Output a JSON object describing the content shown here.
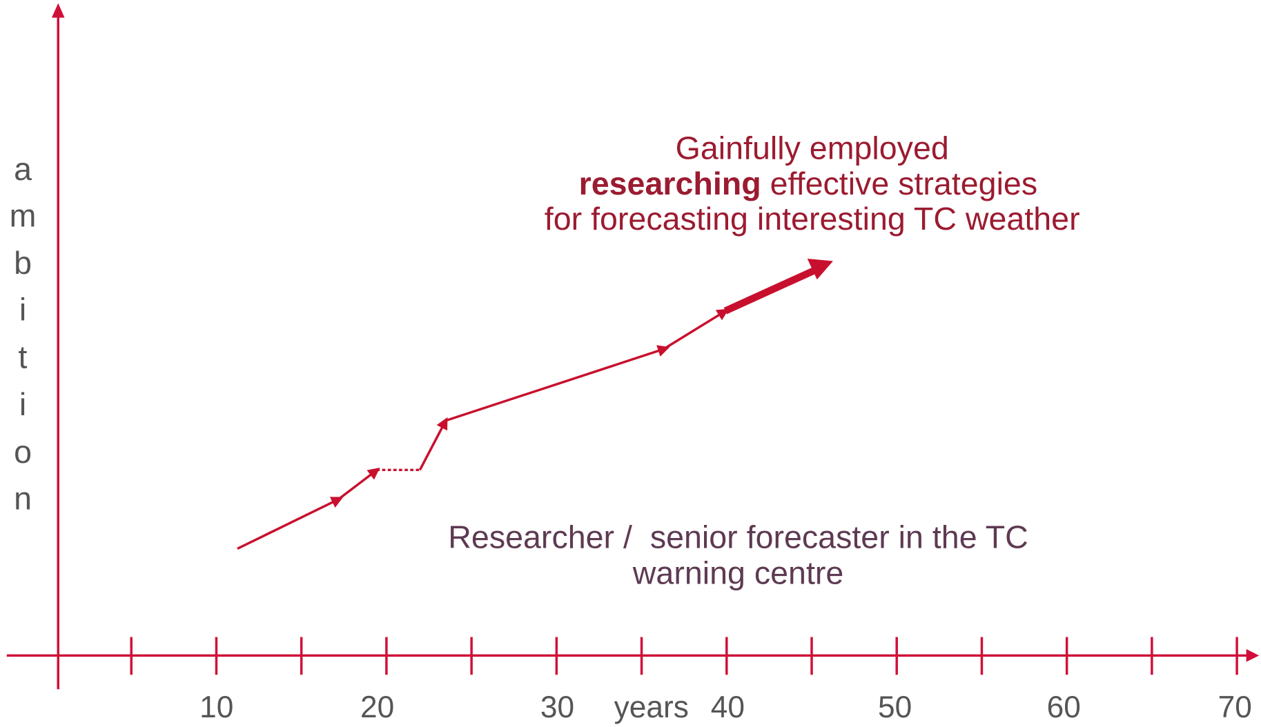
{
  "y_axis": {
    "letters": [
      "a",
      "m",
      "b",
      "i",
      "t",
      "i",
      "o",
      "n"
    ]
  },
  "x_axis": {
    "label": "years",
    "tick_labels": [
      "10",
      "20",
      "30",
      "40",
      "50",
      "60",
      "70"
    ]
  },
  "goal": {
    "line1": "Gainfully employed",
    "line2_bold": "researching",
    "line2_rest": " effective strategies",
    "line3": "for forecasting interesting TC weather"
  },
  "role": {
    "line1": "Researcher /  senior forecaster in the TC",
    "line2": "warning centre"
  }
}
